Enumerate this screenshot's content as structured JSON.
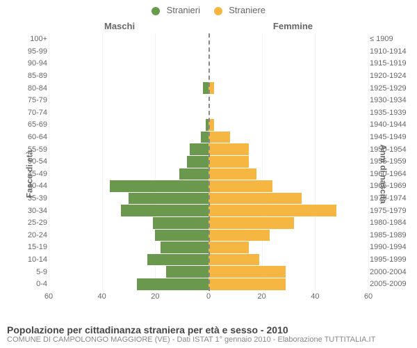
{
  "chart": {
    "type": "population-pyramid",
    "legend": {
      "male": {
        "label": "Stranieri",
        "color": "#6a994e"
      },
      "female": {
        "label": "Straniere",
        "color": "#f5b642"
      }
    },
    "headers": {
      "male": "Maschi",
      "female": "Femmine"
    },
    "y_axis_left_title": "Fasce di età",
    "y_axis_right_title": "Anni di nascita",
    "x_axis": {
      "ticks": [
        60,
        40,
        20,
        0,
        20,
        40,
        60
      ],
      "max": 60
    },
    "grid_color": "#f4f4f4",
    "background_color": "#ffffff",
    "center_line_color": "#888888",
    "row_height": 17.6,
    "bar_gap": 1,
    "label_fontsize": 11,
    "rows": [
      {
        "age": "100+",
        "birth": "≤ 1909",
        "m": 0,
        "f": 0
      },
      {
        "age": "95-99",
        "birth": "1910-1914",
        "m": 0,
        "f": 0
      },
      {
        "age": "90-94",
        "birth": "1915-1919",
        "m": 0,
        "f": 0
      },
      {
        "age": "85-89",
        "birth": "1920-1924",
        "m": 0,
        "f": 0
      },
      {
        "age": "80-84",
        "birth": "1925-1929",
        "m": 2,
        "f": 2
      },
      {
        "age": "75-79",
        "birth": "1930-1934",
        "m": 0,
        "f": 0
      },
      {
        "age": "70-74",
        "birth": "1935-1939",
        "m": 0,
        "f": 0
      },
      {
        "age": "65-69",
        "birth": "1940-1944",
        "m": 1,
        "f": 2
      },
      {
        "age": "60-64",
        "birth": "1945-1949",
        "m": 3,
        "f": 8
      },
      {
        "age": "55-59",
        "birth": "1950-1954",
        "m": 7,
        "f": 15
      },
      {
        "age": "50-54",
        "birth": "1955-1959",
        "m": 8,
        "f": 15
      },
      {
        "age": "45-49",
        "birth": "1960-1964",
        "m": 11,
        "f": 18
      },
      {
        "age": "40-44",
        "birth": "1965-1969",
        "m": 37,
        "f": 24
      },
      {
        "age": "35-39",
        "birth": "1970-1974",
        "m": 30,
        "f": 35
      },
      {
        "age": "30-34",
        "birth": "1975-1979",
        "m": 33,
        "f": 48
      },
      {
        "age": "25-29",
        "birth": "1980-1984",
        "m": 21,
        "f": 32
      },
      {
        "age": "20-24",
        "birth": "1985-1989",
        "m": 20,
        "f": 23
      },
      {
        "age": "15-19",
        "birth": "1990-1994",
        "m": 18,
        "f": 15
      },
      {
        "age": "10-14",
        "birth": "1995-1999",
        "m": 23,
        "f": 19
      },
      {
        "age": "5-9",
        "birth": "2000-2004",
        "m": 16,
        "f": 29
      },
      {
        "age": "0-4",
        "birth": "2005-2009",
        "m": 27,
        "f": 29
      }
    ]
  },
  "footer": {
    "title": "Popolazione per cittadinanza straniera per età e sesso - 2010",
    "subtitle": "COMUNE DI CAMPOLONGO MAGGIORE (VE) - Dati ISTAT 1° gennaio 2010 - Elaborazione TUTTITALIA.IT"
  }
}
